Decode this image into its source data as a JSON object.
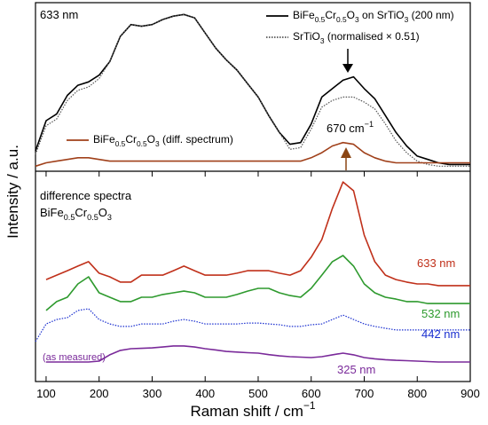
{
  "chart_data": [
    {
      "type": "line",
      "label": "633 nm",
      "annotation": "670 cm−1",
      "ylabel": "Intensity / a.u.",
      "xlim": [
        80,
        900
      ],
      "ylim": [
        0,
        100
      ],
      "x": [
        80,
        100,
        120,
        140,
        160,
        180,
        200,
        220,
        240,
        260,
        280,
        300,
        320,
        340,
        360,
        380,
        400,
        420,
        440,
        460,
        480,
        500,
        520,
        540,
        560,
        580,
        600,
        620,
        640,
        660,
        680,
        700,
        720,
        740,
        760,
        780,
        800,
        820,
        840,
        860,
        880,
        900
      ],
      "series": [
        {
          "name": "BiFe0.5Cr0.5O3 on SrTiO3 (200 nm)",
          "color": "#000000",
          "style": "solid",
          "values": [
            12,
            30,
            34,
            45,
            51,
            53,
            57,
            65,
            80,
            87,
            86,
            87,
            90,
            92,
            93,
            91,
            82,
            73,
            66,
            60,
            52,
            44,
            33,
            23,
            16,
            17,
            28,
            44,
            49,
            54,
            56,
            49,
            43,
            33,
            23,
            15,
            9,
            7,
            5,
            4,
            4,
            4
          ]
        },
        {
          "name": "SrTiO3 (normalised × 0.51)",
          "color": "#555555",
          "style": "dotted",
          "values": [
            10,
            27,
            31,
            42,
            48,
            50,
            55,
            65,
            80,
            87,
            86,
            87,
            90,
            92,
            93,
            91,
            82,
            73,
            66,
            60,
            52,
            44,
            33,
            23,
            13,
            14,
            25,
            38,
            42,
            44,
            44,
            41,
            37,
            28,
            18,
            11,
            6,
            4,
            3,
            3,
            3,
            3
          ]
        },
        {
          "name": "BiFe0.5Cr0.5O3 (diff. spectrum)",
          "color": "#a0401a",
          "style": "solid",
          "values": [
            3,
            5,
            6,
            7,
            8,
            8,
            7,
            6,
            6,
            6,
            6,
            6,
            6,
            6,
            6,
            6,
            6,
            6,
            6,
            6,
            6,
            6,
            6,
            6,
            6,
            6,
            8,
            11,
            15,
            17,
            16,
            11,
            8,
            6,
            5,
            5,
            5,
            5,
            5,
            5,
            5,
            5
          ]
        }
      ]
    },
    {
      "type": "line",
      "label": [
        "difference spectra",
        "BiFe0.5Cr0.5O3"
      ],
      "xlabel": "Raman shift / cm−1",
      "xlim": [
        80,
        900
      ],
      "ylim": [
        0,
        100
      ],
      "xticks": [
        100,
        200,
        300,
        400,
        500,
        600,
        700,
        800,
        900
      ],
      "x": [
        80,
        100,
        120,
        140,
        160,
        180,
        200,
        220,
        240,
        260,
        280,
        300,
        320,
        340,
        360,
        380,
        400,
        420,
        440,
        460,
        480,
        500,
        520,
        540,
        560,
        580,
        600,
        620,
        640,
        660,
        680,
        700,
        720,
        740,
        760,
        780,
        800,
        820,
        840,
        860,
        880,
        900
      ],
      "series": [
        {
          "name": "633 nm",
          "color": "#c0301a",
          "style": "solid",
          "values": [
            null,
            48.5,
            50.6,
            52.7,
            54.9,
            57.0,
            51.5,
            49.8,
            47.3,
            47.3,
            50.6,
            50.6,
            50.6,
            52.7,
            54.9,
            52.7,
            50.6,
            50.6,
            50.6,
            51.5,
            52.7,
            52.7,
            52.7,
            51.5,
            50.6,
            52.7,
            59.1,
            67.5,
            82.3,
            94.9,
            90.7,
            69.6,
            57.0,
            50.6,
            48.5,
            47.3,
            46.4,
            46.4,
            45.6,
            45.6,
            45.6,
            45.6
          ]
        },
        {
          "name": "532 nm",
          "color": "#2e9a2e",
          "style": "solid",
          "values": [
            null,
            33.8,
            38.0,
            40.1,
            46.4,
            49.8,
            42.2,
            40.1,
            38.0,
            38.0,
            40.1,
            40.1,
            41.4,
            42.2,
            43.0,
            42.2,
            40.1,
            40.1,
            40.1,
            41.4,
            43.0,
            44.3,
            44.3,
            42.2,
            40.9,
            40.1,
            44.3,
            50.6,
            57.0,
            59.9,
            54.9,
            46.4,
            42.2,
            40.1,
            39.2,
            38.0,
            38.0,
            37.1,
            37.1,
            37.1,
            37.1,
            37.1
          ]
        },
        {
          "name": "442 nm",
          "color": "#1a2fd0",
          "style": "dotted",
          "values": [
            19.0,
            27.4,
            29.5,
            30.4,
            33.8,
            34.6,
            29.5,
            27.4,
            26.2,
            26.2,
            27.4,
            27.4,
            27.4,
            28.7,
            29.5,
            28.7,
            27.4,
            27.4,
            27.4,
            27.4,
            27.8,
            27.8,
            27.4,
            27.0,
            26.2,
            26.2,
            27.0,
            27.4,
            29.5,
            31.6,
            29.5,
            27.4,
            26.2,
            25.3,
            24.5,
            24.5,
            24.5,
            24.5,
            24.5,
            24.5,
            24.5,
            24.5
          ]
        },
        {
          "name": "325 nm",
          "note": "(as measured)",
          "color": "#7a2a9a",
          "style": "solid",
          "values": [
            null,
            9.3,
            9.3,
            9.3,
            9.3,
            9.3,
            9.7,
            12.7,
            14.8,
            15.6,
            15.8,
            16.0,
            16.4,
            16.9,
            16.9,
            16.4,
            15.6,
            15.0,
            14.3,
            14.0,
            13.7,
            13.5,
            12.8,
            12.2,
            11.8,
            11.6,
            11.4,
            11.8,
            12.7,
            13.5,
            12.7,
            11.4,
            10.8,
            10.4,
            10.1,
            9.9,
            9.7,
            9.5,
            9.3,
            9.3,
            9.3,
            9.3
          ]
        }
      ]
    }
  ]
}
